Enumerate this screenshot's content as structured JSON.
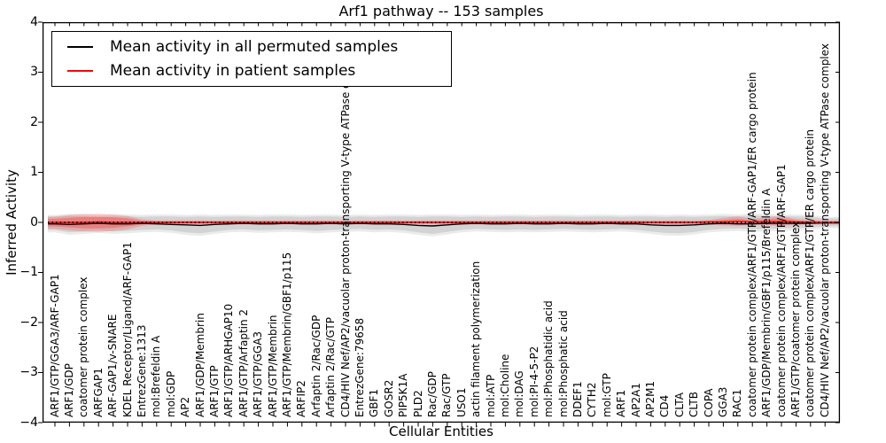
{
  "figure": {
    "background": "#ffffff",
    "axes_border_color": "#000000"
  },
  "legend": {
    "position": "upper left",
    "items": [
      {
        "label": "Mean activity in all permuted samples",
        "color": "#000000"
      },
      {
        "label": "Mean activity in patient samples",
        "color": "#ff0000"
      }
    ]
  },
  "chart_data": {
    "type": "line",
    "title": "Arf1 pathway -- 153 samples",
    "xlabel": "Cellular Entities",
    "ylabel": "Inferred Activity",
    "ylim": [
      -4,
      4
    ],
    "yticks": [
      4,
      3,
      2,
      1,
      0,
      -1,
      -2,
      -3,
      -4
    ],
    "grid": false,
    "legend_position": "upper left",
    "categories": [
      "ARF1/GTP/GGA3/ARF-GAP1",
      "ARF1/GDP",
      "coatomer protein complex",
      "ARFGAP1",
      "ARF-GAP1/v-SNARE",
      "KDEL Receptor/Ligand/ARF-GAP1",
      "EntrezGene:1313",
      "mol:Brefeldin A",
      "mol:GDP",
      "AP2",
      "ARF1/GDP/Membrin",
      "ARF1/GTP",
      "ARF1/GTP/ARHGAP10",
      "ARF1/GTP/Arfaptin 2",
      "ARF1/GTP/GGA3",
      "ARF1/GTP/Membrin",
      "ARF1/GTP/Membrin/GBF1/p115",
      "ARFIP2",
      "Arfaptin 2/Rac/GDP",
      "Arfaptin 2/Rac/GTP",
      "CD4/HIV Nef/AP2/vacuolar proton-transporting V-type ATPase complex",
      "EntrezGene:79658",
      "GBF1",
      "GOSR2",
      "PIP5K1A",
      "PLD2",
      "Rac/GDP",
      "Rac/GTP",
      "USO1",
      "actin filament polymerization",
      "mol:ATP",
      "mol:Choline",
      "mol:DAG",
      "mol:PI-4-5-P2",
      "mol:Phosphatidic acid",
      "mol:Phosphatic acid",
      "DDEF1",
      "CYTH2",
      "mol:GTP",
      "ARF1",
      "AP2A1",
      "AP2M1",
      "CD4",
      "CLTA",
      "CLTB",
      "COPA",
      "GGA3",
      "RAC1",
      "coatomer protein complex/ARF1/GTP/ARF-GAP1/ER cargo protein",
      "ARF1/GDP/Membrin/GBF1/p115/Brefeldin A",
      "coatomer protein complex/ARF1/GTP/ARF-GAP1",
      "ARF1/GTP/coatomer protein complex",
      "coatomer protein complex/ARF1/GTP/ER cargo protein",
      "CD4/HIV Nef/AP2/vacuolar proton-transporting V-type ATPase complex"
    ],
    "series": [
      {
        "name": "Mean activity in all permuted samples",
        "color": "#000000",
        "style": "solid",
        "values": [
          -0.03,
          -0.04,
          -0.03,
          -0.02,
          -0.03,
          -0.03,
          -0.02,
          -0.03,
          -0.04,
          -0.05,
          -0.06,
          -0.04,
          -0.03,
          -0.02,
          -0.03,
          -0.03,
          -0.02,
          -0.03,
          -0.03,
          -0.02,
          -0.03,
          -0.02,
          -0.03,
          -0.03,
          -0.04,
          -0.06,
          -0.07,
          -0.05,
          -0.03,
          -0.02,
          -0.03,
          -0.03,
          -0.02,
          -0.03,
          -0.03,
          -0.02,
          -0.03,
          -0.03,
          -0.02,
          -0.03,
          -0.03,
          -0.05,
          -0.06,
          -0.06,
          -0.05,
          -0.03,
          -0.02,
          -0.03,
          -0.03,
          -0.02,
          -0.02,
          -0.02,
          -0.02,
          -0.01
        ]
      },
      {
        "name": "Mean activity in patient samples",
        "color": "#ff0000",
        "style": "solid",
        "values": [
          0.0,
          0.0,
          0.0,
          0.01,
          0.0,
          0.0,
          0.0,
          0.0,
          0.0,
          0.0,
          0.0,
          0.0,
          0.0,
          0.0,
          0.0,
          0.0,
          0.0,
          0.0,
          0.0,
          0.0,
          0.0,
          0.0,
          0.0,
          0.0,
          0.0,
          0.0,
          0.0,
          0.0,
          0.0,
          0.0,
          0.0,
          0.0,
          0.0,
          0.0,
          0.0,
          0.0,
          0.0,
          0.0,
          0.0,
          0.0,
          0.0,
          0.0,
          0.0,
          0.0,
          0.0,
          0.01,
          0.01,
          0.02,
          0.01,
          0.01,
          0.02,
          0.01,
          0.0,
          0.0
        ]
      },
      {
        "name": "zero-reference",
        "color": "#000000",
        "style": "dotted",
        "constant": 0
      }
    ],
    "bands": [
      {
        "name": "permuted-band-outer",
        "color": "rgba(0,0,0,0.08)",
        "upper": [
          0.15,
          0.17,
          0.16,
          0.15,
          0.16,
          0.16,
          0.15,
          0.16,
          0.16,
          0.15,
          0.16,
          0.15,
          0.16,
          0.16,
          0.15,
          0.16,
          0.16,
          0.15,
          0.16,
          0.16,
          0.15,
          0.16,
          0.15,
          0.16,
          0.16,
          0.15,
          0.16,
          0.16,
          0.15,
          0.16,
          0.15,
          0.16,
          0.16,
          0.15,
          0.16,
          0.16,
          0.15,
          0.16,
          0.16,
          0.15,
          0.16,
          0.16,
          0.15,
          0.16,
          0.15,
          0.16,
          0.17,
          0.16,
          0.18,
          0.17,
          0.16,
          0.16,
          0.15,
          0.11
        ],
        "lower": [
          -0.2,
          -0.25,
          -0.23,
          -0.21,
          -0.23,
          -0.22,
          -0.2,
          -0.19,
          -0.21,
          -0.25,
          -0.27,
          -0.23,
          -0.2,
          -0.19,
          -0.21,
          -0.2,
          -0.19,
          -0.2,
          -0.22,
          -0.2,
          -0.19,
          -0.18,
          -0.2,
          -0.19,
          -0.21,
          -0.25,
          -0.28,
          -0.24,
          -0.2,
          -0.18,
          -0.19,
          -0.2,
          -0.19,
          -0.2,
          -0.19,
          -0.18,
          -0.19,
          -0.2,
          -0.19,
          -0.18,
          -0.2,
          -0.23,
          -0.26,
          -0.27,
          -0.24,
          -0.2,
          -0.18,
          -0.17,
          -0.19,
          -0.18,
          -0.17,
          -0.16,
          -0.15,
          -0.12
        ]
      },
      {
        "name": "permuted-band-inner",
        "color": "rgba(0,0,0,0.10)",
        "upper": [
          0.11,
          0.13,
          0.12,
          0.11,
          0.12,
          0.12,
          0.11,
          0.12,
          0.12,
          0.11,
          0.12,
          0.11,
          0.12,
          0.12,
          0.11,
          0.12,
          0.12,
          0.11,
          0.12,
          0.12,
          0.11,
          0.12,
          0.11,
          0.12,
          0.12,
          0.11,
          0.12,
          0.12,
          0.11,
          0.12,
          0.11,
          0.12,
          0.12,
          0.11,
          0.12,
          0.12,
          0.11,
          0.12,
          0.12,
          0.11,
          0.12,
          0.12,
          0.11,
          0.12,
          0.11,
          0.12,
          0.13,
          0.12,
          0.14,
          0.13,
          0.12,
          0.12,
          0.11,
          0.08
        ],
        "lower": [
          -0.15,
          -0.2,
          -0.18,
          -0.16,
          -0.18,
          -0.17,
          -0.15,
          -0.14,
          -0.16,
          -0.2,
          -0.22,
          -0.18,
          -0.15,
          -0.14,
          -0.16,
          -0.15,
          -0.14,
          -0.15,
          -0.17,
          -0.15,
          -0.14,
          -0.13,
          -0.15,
          -0.14,
          -0.16,
          -0.2,
          -0.23,
          -0.19,
          -0.15,
          -0.13,
          -0.14,
          -0.15,
          -0.14,
          -0.15,
          -0.14,
          -0.13,
          -0.14,
          -0.15,
          -0.14,
          -0.13,
          -0.15,
          -0.18,
          -0.21,
          -0.22,
          -0.19,
          -0.15,
          -0.13,
          -0.12,
          -0.14,
          -0.13,
          -0.12,
          -0.11,
          -0.1,
          -0.08
        ]
      },
      {
        "name": "patient-band-outer",
        "color": "rgba(255,40,40,0.22)",
        "upper": [
          0.12,
          0.15,
          0.17,
          0.17,
          0.16,
          0.13,
          0.06,
          0.04,
          0.04,
          0.04,
          0.04,
          0.04,
          0.04,
          0.04,
          0.04,
          0.04,
          0.04,
          0.04,
          0.04,
          0.04,
          0.04,
          0.04,
          0.04,
          0.04,
          0.04,
          0.04,
          0.04,
          0.04,
          0.04,
          0.04,
          0.04,
          0.04,
          0.04,
          0.04,
          0.04,
          0.04,
          0.04,
          0.04,
          0.04,
          0.04,
          0.04,
          0.04,
          0.04,
          0.04,
          0.04,
          0.05,
          0.09,
          0.12,
          0.07,
          0.1,
          0.13,
          0.07,
          0.05,
          0.04
        ],
        "lower": [
          -0.13,
          -0.16,
          -0.18,
          -0.19,
          -0.17,
          -0.14,
          -0.07,
          -0.04,
          -0.04,
          -0.04,
          -0.04,
          -0.04,
          -0.04,
          -0.04,
          -0.04,
          -0.04,
          -0.04,
          -0.04,
          -0.04,
          -0.04,
          -0.04,
          -0.04,
          -0.04,
          -0.04,
          -0.04,
          -0.04,
          -0.04,
          -0.04,
          -0.04,
          -0.04,
          -0.04,
          -0.04,
          -0.04,
          -0.04,
          -0.04,
          -0.04,
          -0.04,
          -0.04,
          -0.04,
          -0.04,
          -0.04,
          -0.04,
          -0.04,
          -0.04,
          -0.04,
          -0.05,
          -0.06,
          -0.07,
          -0.05,
          -0.06,
          -0.07,
          -0.05,
          -0.04,
          -0.04
        ]
      },
      {
        "name": "patient-band-inner",
        "color": "rgba(255,40,40,0.33)",
        "upper": [
          0.07,
          0.09,
          0.11,
          0.11,
          0.1,
          0.08,
          0.03,
          0.02,
          0.02,
          0.02,
          0.02,
          0.02,
          0.02,
          0.02,
          0.02,
          0.02,
          0.02,
          0.02,
          0.02,
          0.02,
          0.02,
          0.02,
          0.02,
          0.02,
          0.02,
          0.02,
          0.02,
          0.02,
          0.02,
          0.02,
          0.02,
          0.02,
          0.02,
          0.02,
          0.02,
          0.02,
          0.02,
          0.02,
          0.02,
          0.02,
          0.02,
          0.02,
          0.02,
          0.02,
          0.02,
          0.03,
          0.05,
          0.07,
          0.04,
          0.06,
          0.08,
          0.04,
          0.03,
          0.02
        ],
        "lower": [
          -0.08,
          -0.1,
          -0.12,
          -0.12,
          -0.11,
          -0.08,
          -0.04,
          -0.02,
          -0.02,
          -0.02,
          -0.02,
          -0.02,
          -0.02,
          -0.02,
          -0.02,
          -0.02,
          -0.02,
          -0.02,
          -0.02,
          -0.02,
          -0.02,
          -0.02,
          -0.02,
          -0.02,
          -0.02,
          -0.02,
          -0.02,
          -0.02,
          -0.02,
          -0.02,
          -0.02,
          -0.02,
          -0.02,
          -0.02,
          -0.02,
          -0.02,
          -0.02,
          -0.02,
          -0.02,
          -0.02,
          -0.02,
          -0.02,
          -0.02,
          -0.02,
          -0.02,
          -0.03,
          -0.04,
          -0.04,
          -0.03,
          -0.04,
          -0.05,
          -0.03,
          -0.02,
          -0.02
        ]
      }
    ]
  }
}
